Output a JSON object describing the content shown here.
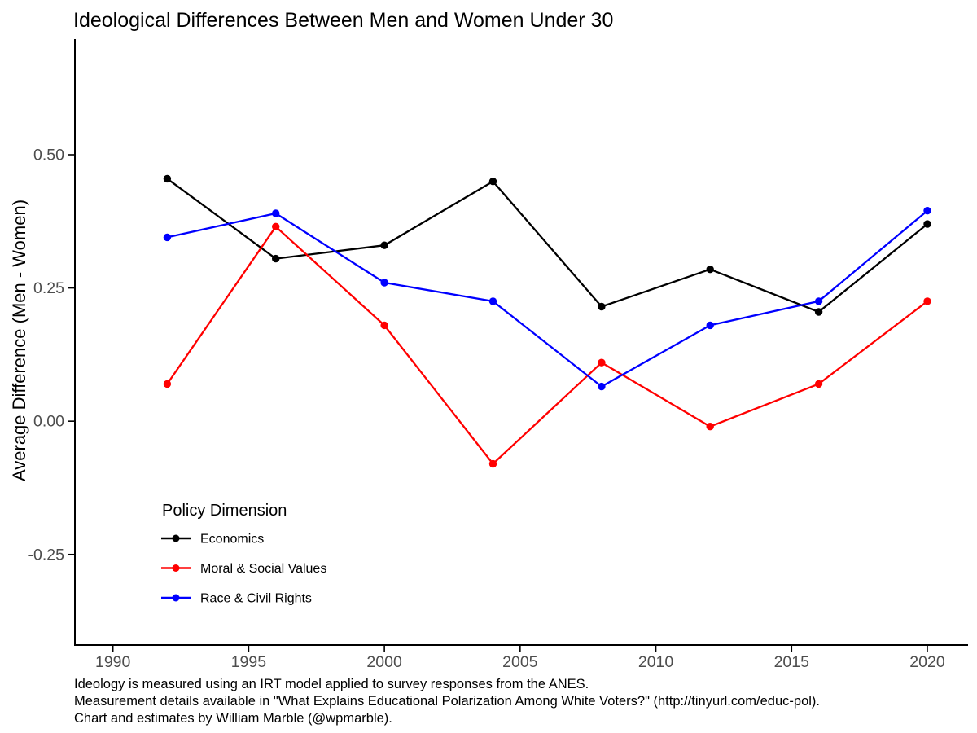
{
  "chart_data": {
    "type": "line",
    "title": "Ideological Differences Between Men and Women Under 30",
    "xlabel": "",
    "ylabel": "Average Difference (Men - Women)",
    "x": [
      1992,
      1996,
      2000,
      2004,
      2008,
      2012,
      2016,
      2020
    ],
    "series": [
      {
        "name": "Economics",
        "color": "#000000",
        "values": [
          0.455,
          0.305,
          0.33,
          0.45,
          0.215,
          0.285,
          0.205,
          0.37
        ]
      },
      {
        "name": "Moral & Social Values",
        "color": "#ff0000",
        "values": [
          0.07,
          0.365,
          0.18,
          -0.08,
          0.11,
          -0.01,
          0.07,
          0.225
        ]
      },
      {
        "name": "Race & Civil Rights",
        "color": "#0000ff",
        "values": [
          0.345,
          0.39,
          0.26,
          0.225,
          0.065,
          0.18,
          0.225,
          0.395
        ]
      }
    ],
    "x_ticks": [
      1990,
      1995,
      2000,
      2005,
      2010,
      2015,
      2020
    ],
    "x_tick_labels": [
      "1990",
      "1995",
      "2000",
      "2005",
      "2010",
      "2015",
      "2020"
    ],
    "y_ticks": [
      -0.25,
      0.0,
      0.25,
      0.5
    ],
    "y_tick_labels": [
      "-0.25",
      "0.00",
      "0.25",
      "0.50"
    ],
    "xlim": [
      1988.6,
      2021.5
    ],
    "ylim": [
      -0.42,
      0.717
    ],
    "grid": false,
    "legend": {
      "title": "Policy Dimension",
      "position": "inside-bottom-left"
    },
    "point_radius": 4.7,
    "line_width": 2.3
  },
  "caption": {
    "lines": [
      "Ideology is measured using an IRT model applied to survey responses from the ANES.",
      "Measurement details available in \"What Explains Educational Polarization Among White Voters?\" (http://tinyurl.com/educ-pol).",
      "Chart and estimates by William Marble (@wpmarble)."
    ]
  }
}
